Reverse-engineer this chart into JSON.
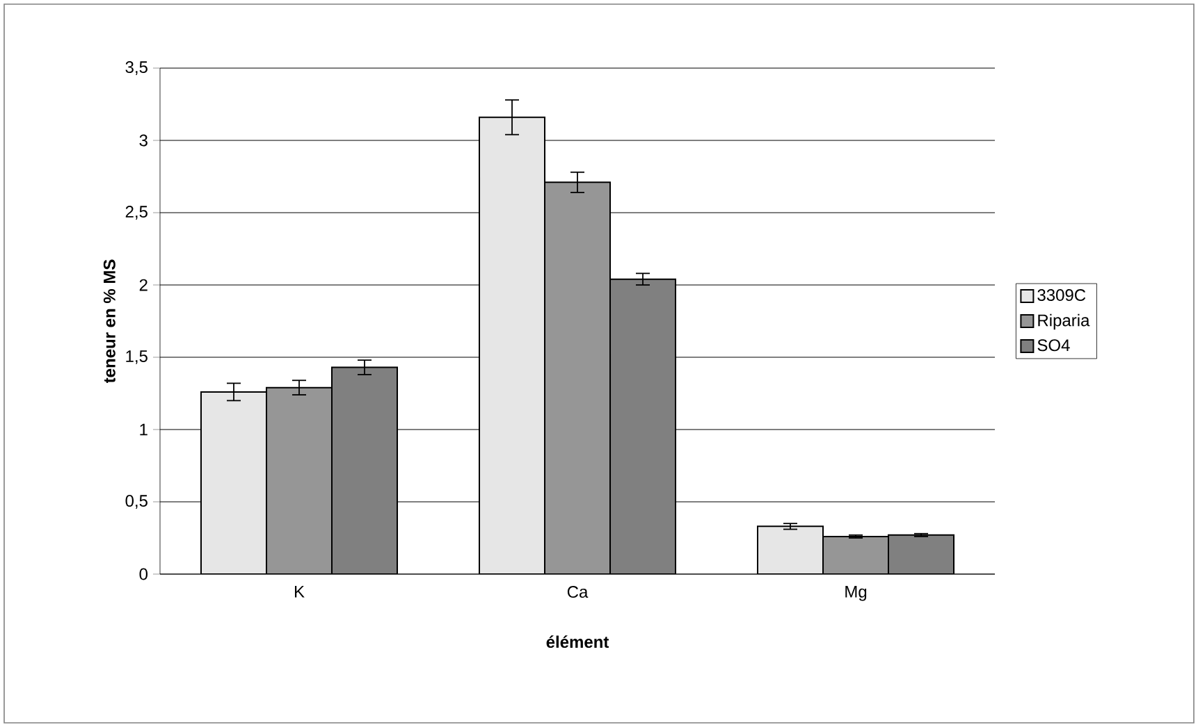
{
  "chart_data": {
    "type": "bar",
    "xlabel": "élément",
    "ylabel": "teneur en % MS",
    "categories": [
      "K",
      "Ca",
      "Mg"
    ],
    "series": [
      {
        "name": "3309C",
        "color": "#e6e6e6",
        "values": [
          1.26,
          3.16,
          0.33
        ],
        "errors": [
          0.06,
          0.12,
          0.02
        ]
      },
      {
        "name": "Riparia",
        "color": "#969696",
        "values": [
          1.29,
          2.71,
          0.26
        ],
        "errors": [
          0.05,
          0.07,
          0.01
        ]
      },
      {
        "name": "SO4",
        "color": "#808080",
        "values": [
          1.43,
          2.04,
          0.27
        ],
        "errors": [
          0.05,
          0.04,
          0.01
        ]
      }
    ],
    "ylim": [
      0,
      3.5
    ],
    "yticks": [
      0,
      {
        "value": 0.5,
        "label": "0,5"
      },
      1,
      {
        "value": 1.5,
        "label": "1,5"
      },
      2,
      {
        "value": 2.5,
        "label": "2,5"
      },
      3,
      {
        "value": 3.5,
        "label": "3,5"
      }
    ],
    "grid": "y",
    "legend": "right"
  }
}
